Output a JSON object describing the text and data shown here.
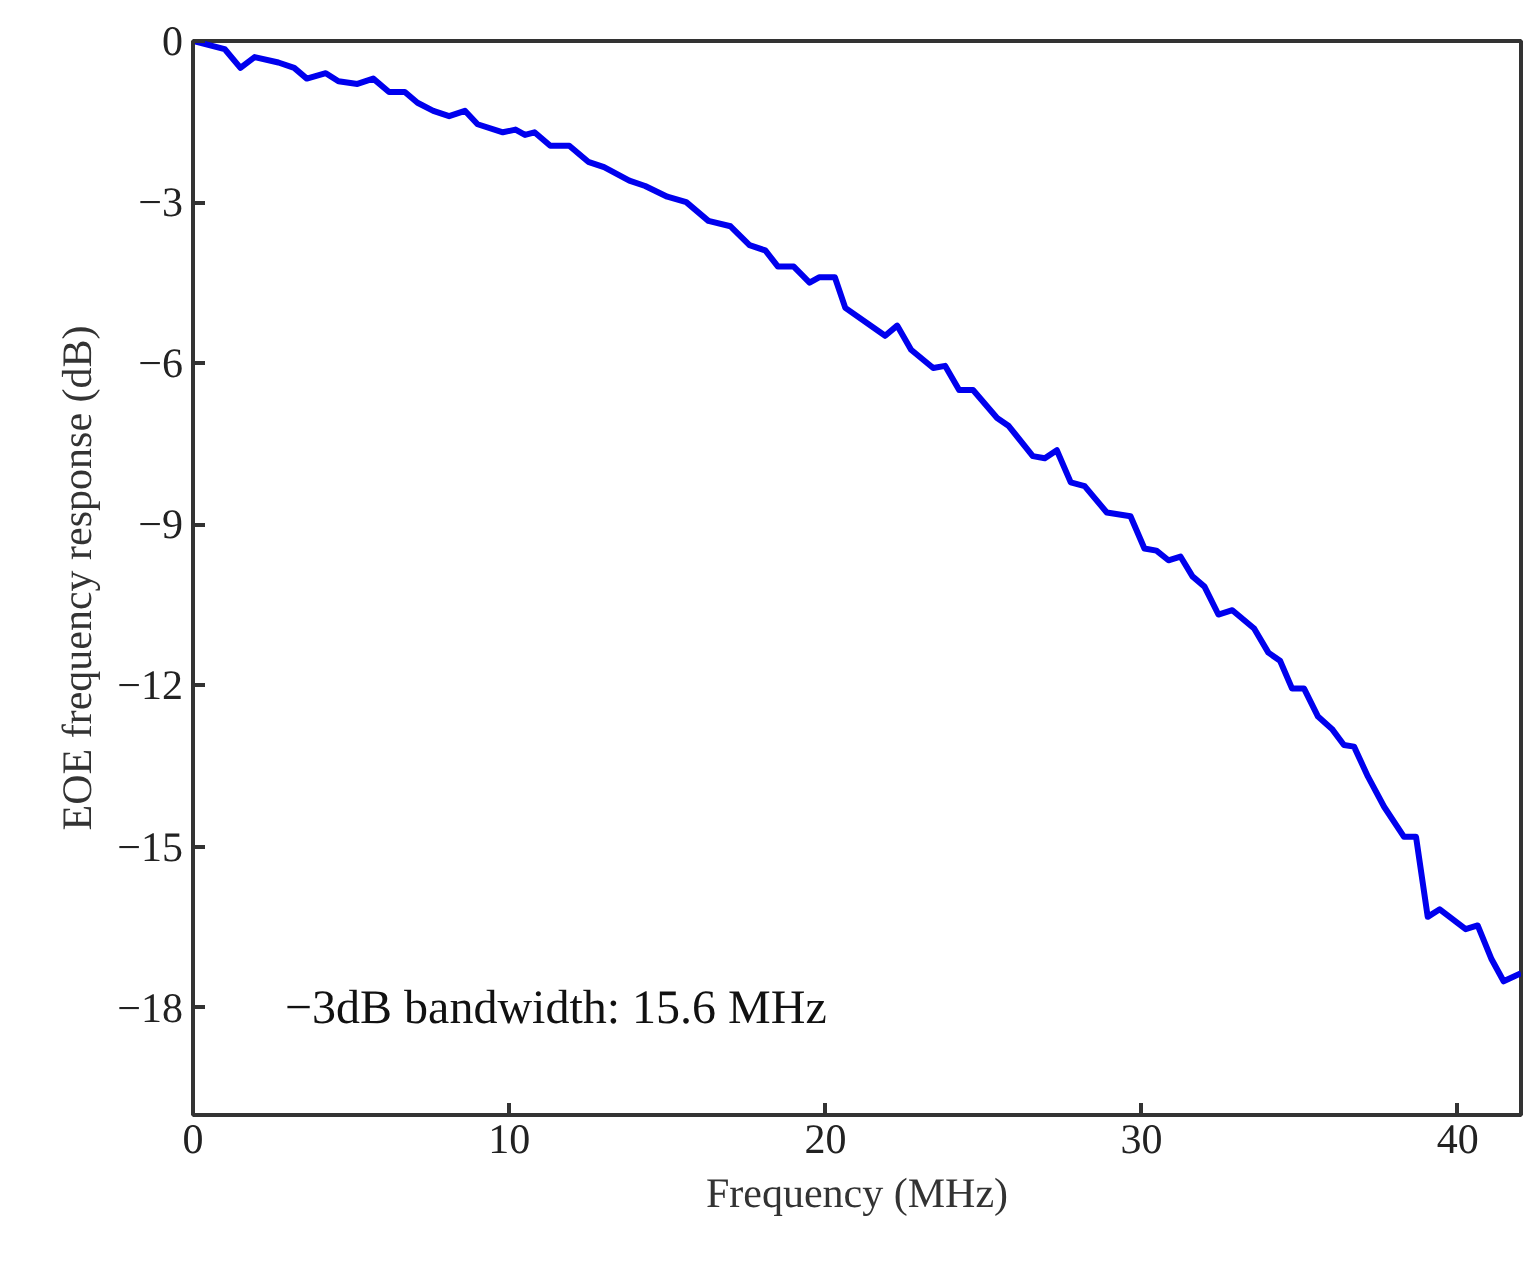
{
  "chart_data": {
    "type": "line",
    "xlabel": "Frequency (MHz)",
    "ylabel": "EOE frequency response (dB)",
    "annotations": [
      "−3dB bandwidth: 15.6 MHz"
    ],
    "xlim": [
      0,
      42
    ],
    "ylim": [
      -20,
      0
    ],
    "xticks": [
      0,
      10,
      20,
      30,
      40
    ],
    "yticks": [
      {
        "value": 0,
        "label": "0"
      },
      {
        "value": -3,
        "label": "−3"
      },
      {
        "value": -6,
        "label": "−6"
      },
      {
        "value": -9,
        "label": "−9"
      },
      {
        "value": -12,
        "label": "−12"
      },
      {
        "value": -15,
        "label": "−15"
      },
      {
        "value": -18,
        "label": "−18"
      }
    ],
    "grid": false,
    "marker": "none",
    "line_style": "solid",
    "series": [
      {
        "color": "#0000ee",
        "x": [
          0,
          1.0,
          1.5,
          1.95,
          2.7,
          3.2,
          3.6,
          4.2,
          4.6,
          5.2,
          5.7,
          6.2,
          6.7,
          7.1,
          7.6,
          8.1,
          8.6,
          9.0,
          9.8,
          10.2,
          10.5,
          10.8,
          11.3,
          11.9,
          12.5,
          13.0,
          13.8,
          14.3,
          15.0,
          15.6,
          16.3,
          17.0,
          17.6,
          18.1,
          18.5,
          19.0,
          19.5,
          19.8,
          20.3,
          20.63,
          21.89,
          22.27,
          22.71,
          23.41,
          23.79,
          24.23,
          24.67,
          25.43,
          25.8,
          26.56,
          26.94,
          27.32,
          27.76,
          28.2,
          28.9,
          29.65,
          30.09,
          30.47,
          30.85,
          31.23,
          31.61,
          31.99,
          32.43,
          32.87,
          33.56,
          34.01,
          34.38,
          34.76,
          35.14,
          35.58,
          36.02,
          36.4,
          36.72,
          37.16,
          37.67,
          38.3,
          38.68,
          39.05,
          39.43,
          40.25,
          40.63,
          41.07,
          41.45,
          42.0
        ],
        "values": [
          0,
          -0.15,
          -0.5,
          -0.3,
          -0.4,
          -0.5,
          -0.7,
          -0.6,
          -0.75,
          -0.8,
          -0.7,
          -0.95,
          -0.95,
          -1.15,
          -1.3,
          -1.4,
          -1.3,
          -1.55,
          -1.7,
          -1.65,
          -1.75,
          -1.7,
          -1.95,
          -1.95,
          -2.25,
          -2.35,
          -2.6,
          -2.7,
          -2.9,
          -3.0,
          -3.35,
          -3.45,
          -3.8,
          -3.9,
          -4.2,
          -4.2,
          -4.5,
          -4.4,
          -4.4,
          -4.97,
          -5.49,
          -5.3,
          -5.75,
          -6.09,
          -6.05,
          -6.5,
          -6.5,
          -7.02,
          -7.17,
          -7.73,
          -7.77,
          -7.62,
          -8.22,
          -8.29,
          -8.78,
          -8.85,
          -9.45,
          -9.49,
          -9.67,
          -9.6,
          -9.97,
          -10.16,
          -10.68,
          -10.6,
          -10.94,
          -11.39,
          -11.54,
          -12.06,
          -12.06,
          -12.58,
          -12.81,
          -13.11,
          -13.14,
          -13.7,
          -14.26,
          -14.82,
          -14.82,
          -16.31,
          -16.17,
          -16.54,
          -16.47,
          -17.1,
          -17.51,
          -17.36
        ]
      }
    ]
  }
}
